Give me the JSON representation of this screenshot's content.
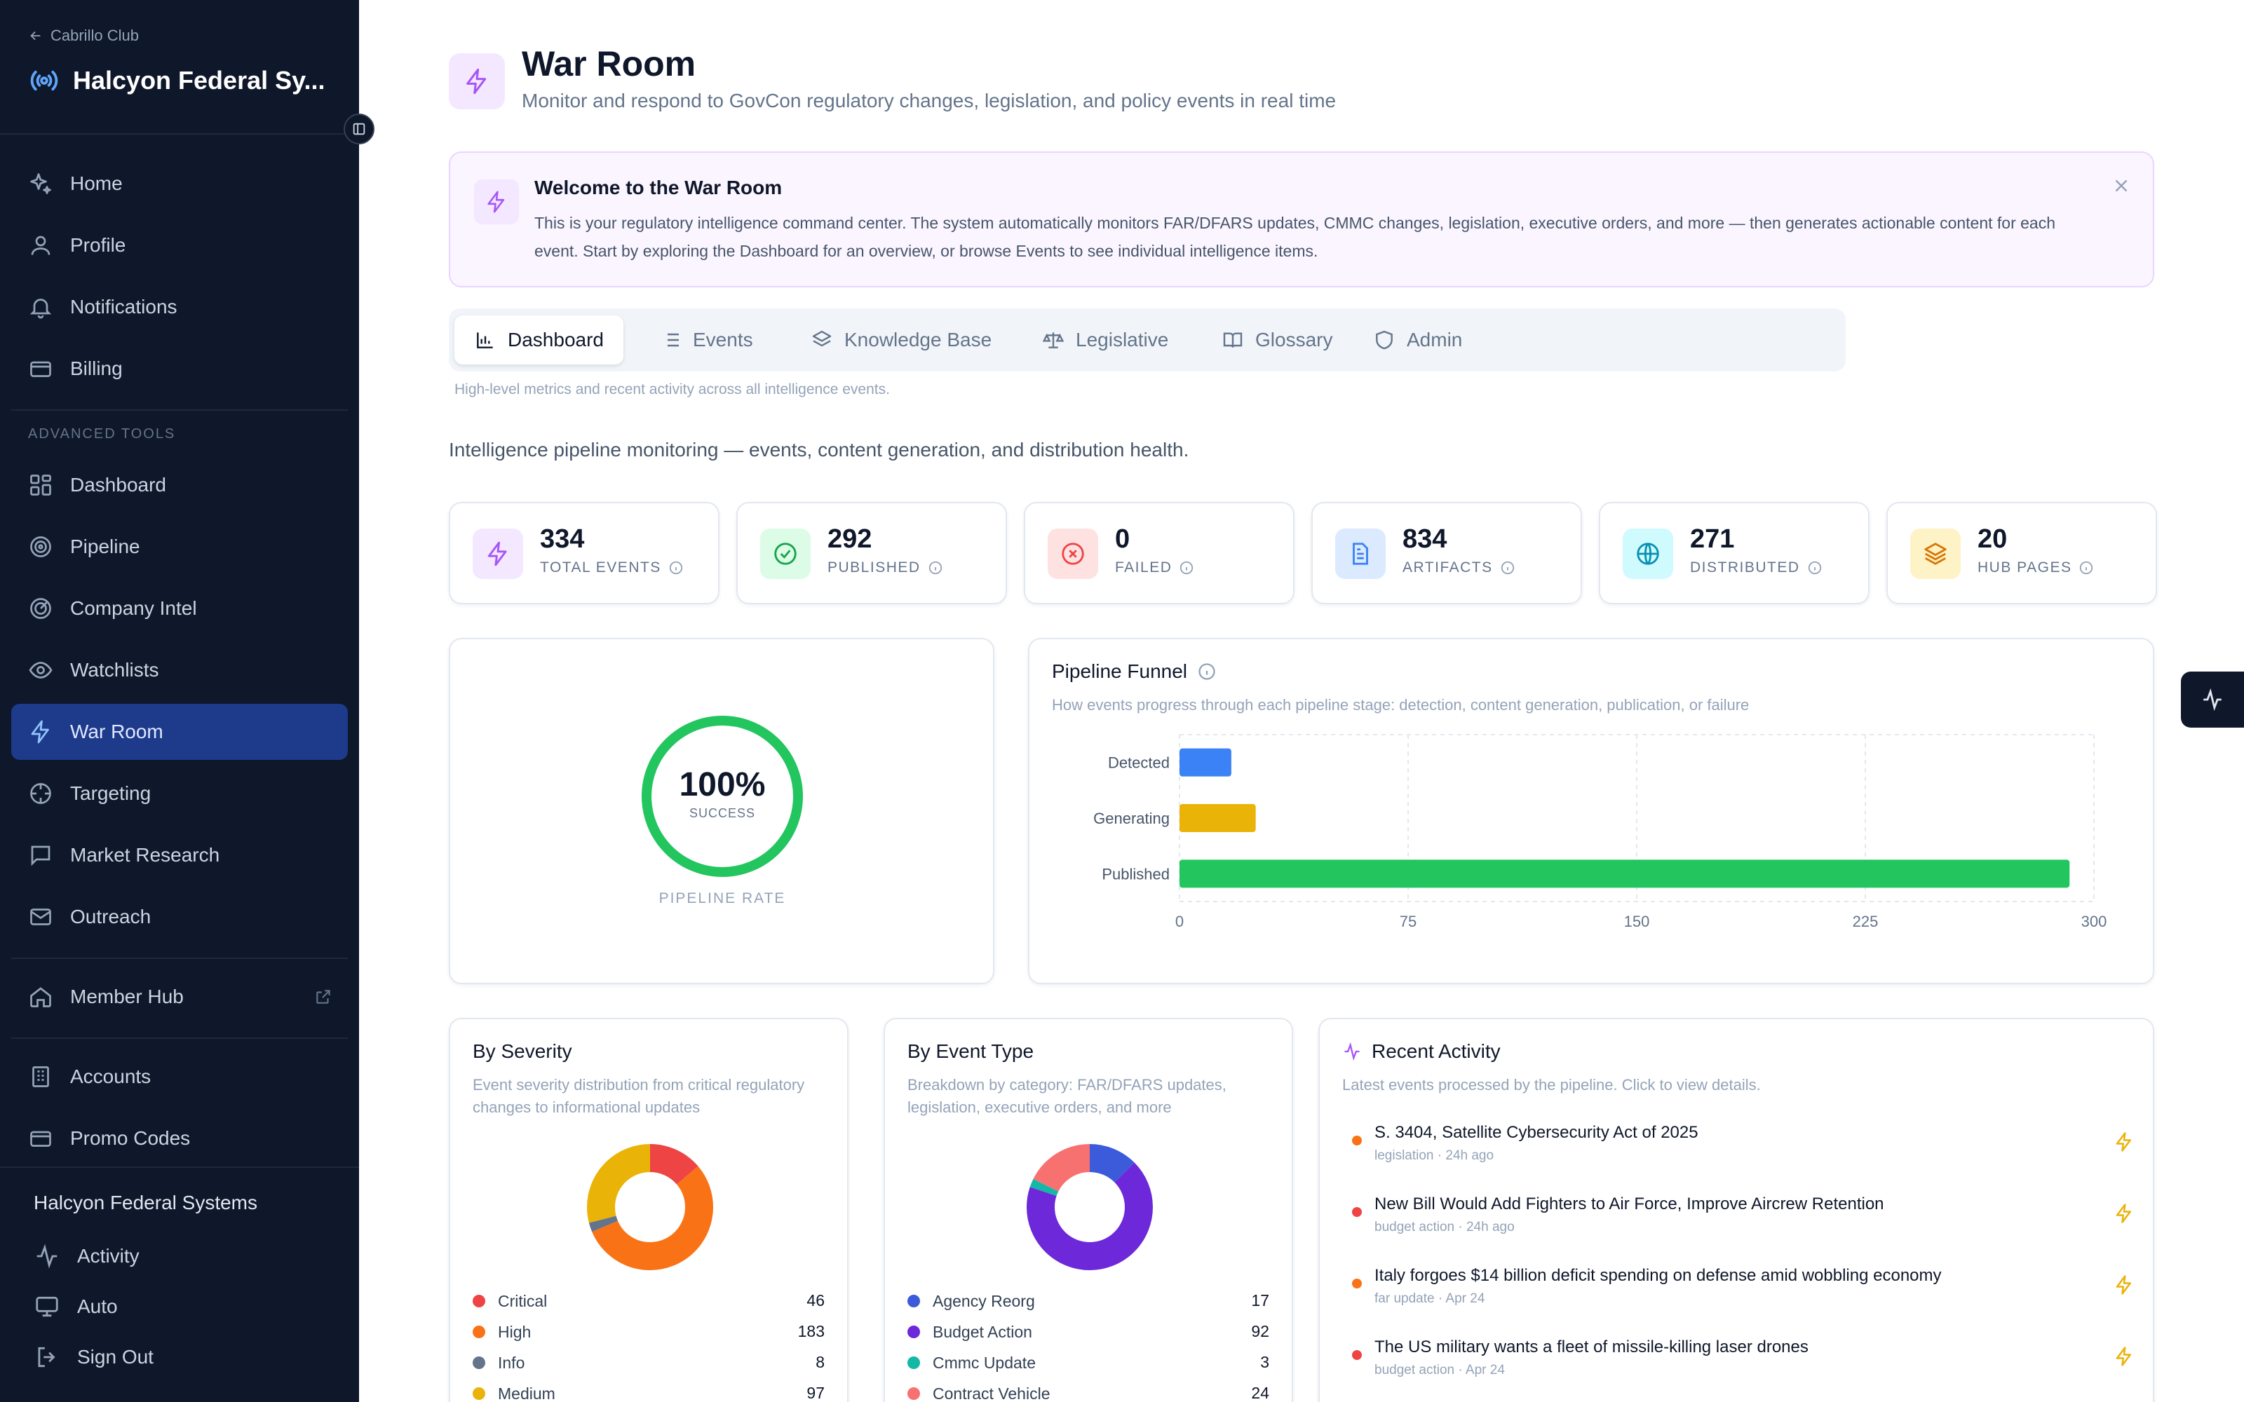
{
  "sidebar": {
    "back_label": "Cabrillo Club",
    "org_name": "Halcyon Federal Sy...",
    "items": [
      {
        "label": "Home",
        "icon": "sparkle-icon"
      },
      {
        "label": "Profile",
        "icon": "user-icon"
      },
      {
        "label": "Notifications",
        "icon": "bell-icon"
      },
      {
        "label": "Billing",
        "icon": "credit-card-icon"
      }
    ],
    "section_label": "ADVANCED TOOLS",
    "advanced_items": [
      {
        "label": "Dashboard",
        "icon": "grid-icon"
      },
      {
        "label": "Pipeline",
        "icon": "target-icon"
      },
      {
        "label": "Company Intel",
        "icon": "radar-icon"
      },
      {
        "label": "Watchlists",
        "icon": "eye-icon"
      },
      {
        "label": "War Room",
        "icon": "bolt-icon",
        "active": true
      },
      {
        "label": "Targeting",
        "icon": "crosshair-icon"
      },
      {
        "label": "Market Research",
        "icon": "message-square-icon"
      },
      {
        "label": "Outreach",
        "icon": "mail-icon"
      }
    ],
    "member_hub": {
      "label": "Member Hub",
      "icon": "home-icon"
    },
    "admin_items": [
      {
        "label": "Accounts",
        "icon": "building-icon"
      },
      {
        "label": "Promo Codes",
        "icon": "credit-card-icon"
      }
    ],
    "bottom_title": "Halcyon Federal Systems",
    "bottom_items": [
      {
        "label": "Activity",
        "icon": "activity-icon"
      },
      {
        "label": "Auto",
        "icon": "monitor-icon"
      },
      {
        "label": "Sign Out",
        "icon": "sign-out-icon"
      }
    ]
  },
  "header": {
    "title": "War Room",
    "subtitle": "Monitor and respond to GovCon regulatory changes, legislation, and policy events in real time"
  },
  "welcome": {
    "title": "Welcome to the War Room",
    "text": "This is your regulatory intelligence command center. The system automatically monitors FAR/DFARS updates, CMMC changes, legislation, executive orders, and more — then generates actionable content for each event. Start by exploring the Dashboard for an overview, or browse Events to see individual intelligence items."
  },
  "tabs": [
    {
      "label": "Dashboard",
      "icon": "bar-chart-icon",
      "active": true
    },
    {
      "label": "Events",
      "icon": "list-icon"
    },
    {
      "label": "Knowledge Base",
      "icon": "layers-icon"
    },
    {
      "label": "Legislative",
      "icon": "scale-icon"
    },
    {
      "label": "Glossary",
      "icon": "book-icon"
    },
    {
      "label": "Admin",
      "icon": "shield-icon"
    }
  ],
  "tab_description": "High-level metrics and recent activity across all intelligence events.",
  "intro": "Intelligence pipeline monitoring — events, content generation, and distribution health.",
  "stats": [
    {
      "value": "334",
      "label": "TOTAL EVENTS",
      "icon": "bolt-icon",
      "color": "#a855f7",
      "bg": "#f3e8ff"
    },
    {
      "value": "292",
      "label": "PUBLISHED",
      "icon": "check-circle-icon",
      "color": "#16a34a",
      "bg": "#dcfce7"
    },
    {
      "value": "0",
      "label": "FAILED",
      "icon": "x-circle-icon",
      "color": "#ef4444",
      "bg": "#fee2e2"
    },
    {
      "value": "834",
      "label": "ARTIFACTS",
      "icon": "file-text-icon",
      "color": "#3b82f6",
      "bg": "#dbeafe"
    },
    {
      "value": "271",
      "label": "DISTRIBUTED",
      "icon": "globe-icon",
      "color": "#0891b2",
      "bg": "#cffafe"
    },
    {
      "value": "20",
      "label": "HUB PAGES",
      "icon": "layers-icon",
      "color": "#d97706",
      "bg": "#fef3c7"
    }
  ],
  "pipeline_rate": {
    "value": "100%",
    "sub": "SUCCESS",
    "label": "PIPELINE RATE",
    "fraction": 1.0,
    "color": "#22c55e"
  },
  "funnel": {
    "title": "Pipeline Funnel",
    "description": "How events progress through each pipeline stage: detection, content generation, publication, or failure",
    "chart_data": {
      "type": "bar",
      "orientation": "horizontal",
      "categories": [
        "Detected",
        "Generating",
        "Published"
      ],
      "values": [
        17,
        25,
        292
      ],
      "colors": [
        "#3b82f6",
        "#eab308",
        "#22c55e"
      ],
      "xlim": [
        0,
        300
      ],
      "xticks": [
        "0",
        "75",
        "150",
        "225",
        "300"
      ],
      "grid": true
    }
  },
  "severity": {
    "title": "By Severity",
    "description": "Event severity distribution from critical regulatory changes to informational updates",
    "chart_data": {
      "type": "pie",
      "donut": true,
      "categories": [
        "Critical",
        "High",
        "Info",
        "Medium"
      ],
      "values": [
        46,
        183,
        8,
        97
      ],
      "colors": [
        "#ef4444",
        "#f97316",
        "#64748b",
        "#eab308"
      ]
    }
  },
  "event_type": {
    "title": "By Event Type",
    "description": "Breakdown by category: FAR/DFARS updates, legislation, executive orders, and more",
    "chart_data": {
      "type": "pie",
      "donut": true,
      "categories": [
        "Agency Reorg",
        "Budget Action",
        "Cmmc Update",
        "Contract Vehicle"
      ],
      "values": [
        17,
        92,
        3,
        24
      ],
      "colors": [
        "#3b5bdb",
        "#6d28d9",
        "#14b8a6",
        "#f87171"
      ]
    }
  },
  "activity": {
    "title": "Recent Activity",
    "description": "Latest events processed by the pipeline. Click to view details.",
    "items": [
      {
        "title": "S. 3404, Satellite Cybersecurity Act of 2025",
        "meta": "legislation · 24h ago",
        "dot": "#f97316"
      },
      {
        "title": "New Bill Would Add Fighters to Air Force, Improve Aircrew Retention",
        "meta": "budget action · 24h ago",
        "dot": "#ef4444"
      },
      {
        "title": "Italy forgoes $14 billion deficit spending on defense amid wobbling economy",
        "meta": "far update · Apr 24",
        "dot": "#f97316"
      },
      {
        "title": "The US military wants a fleet of missile-killing laser drones",
        "meta": "budget action · Apr 24",
        "dot": "#ef4444"
      }
    ]
  }
}
